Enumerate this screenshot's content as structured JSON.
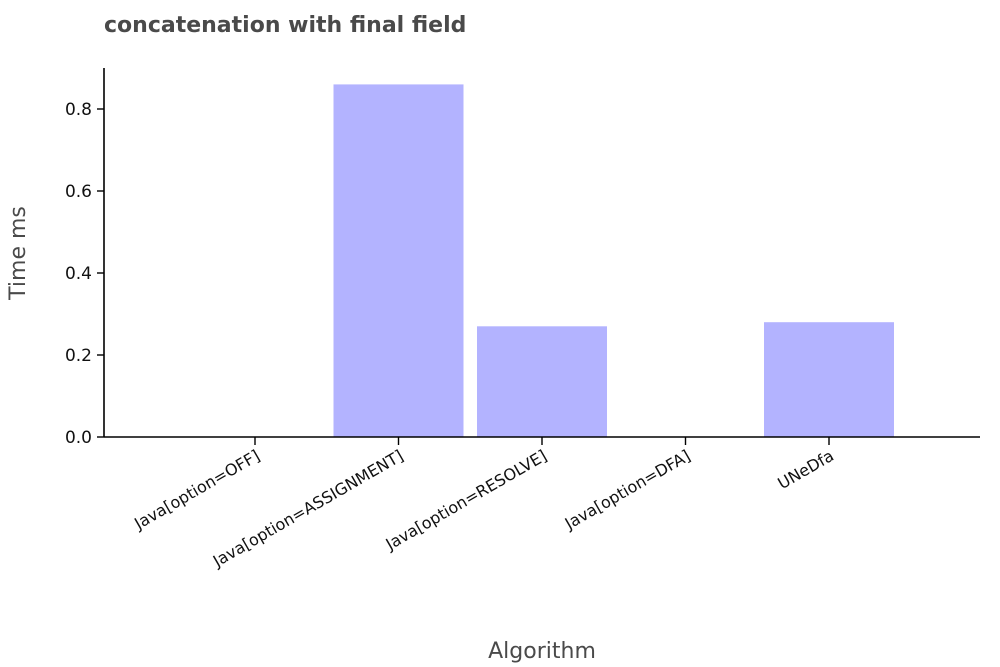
{
  "chart_data": {
    "type": "bar",
    "title": "concatenation with final field",
    "xlabel": "Algorithm",
    "ylabel": "Time ms",
    "categories": [
      "Java[option=OFF]",
      "Java[option=ASSIGNMENT]",
      "Java[option=RESOLVE]",
      "Java[option=DFA]",
      "UNeDfa"
    ],
    "values": [
      0.0,
      0.86,
      0.27,
      0.0,
      0.28
    ],
    "ylim": [
      0,
      0.9
    ],
    "yticks": [
      "0.0",
      "0.2",
      "0.4",
      "0.6",
      "0.8"
    ],
    "bar_color": "#b3b3ff",
    "grid": false
  }
}
